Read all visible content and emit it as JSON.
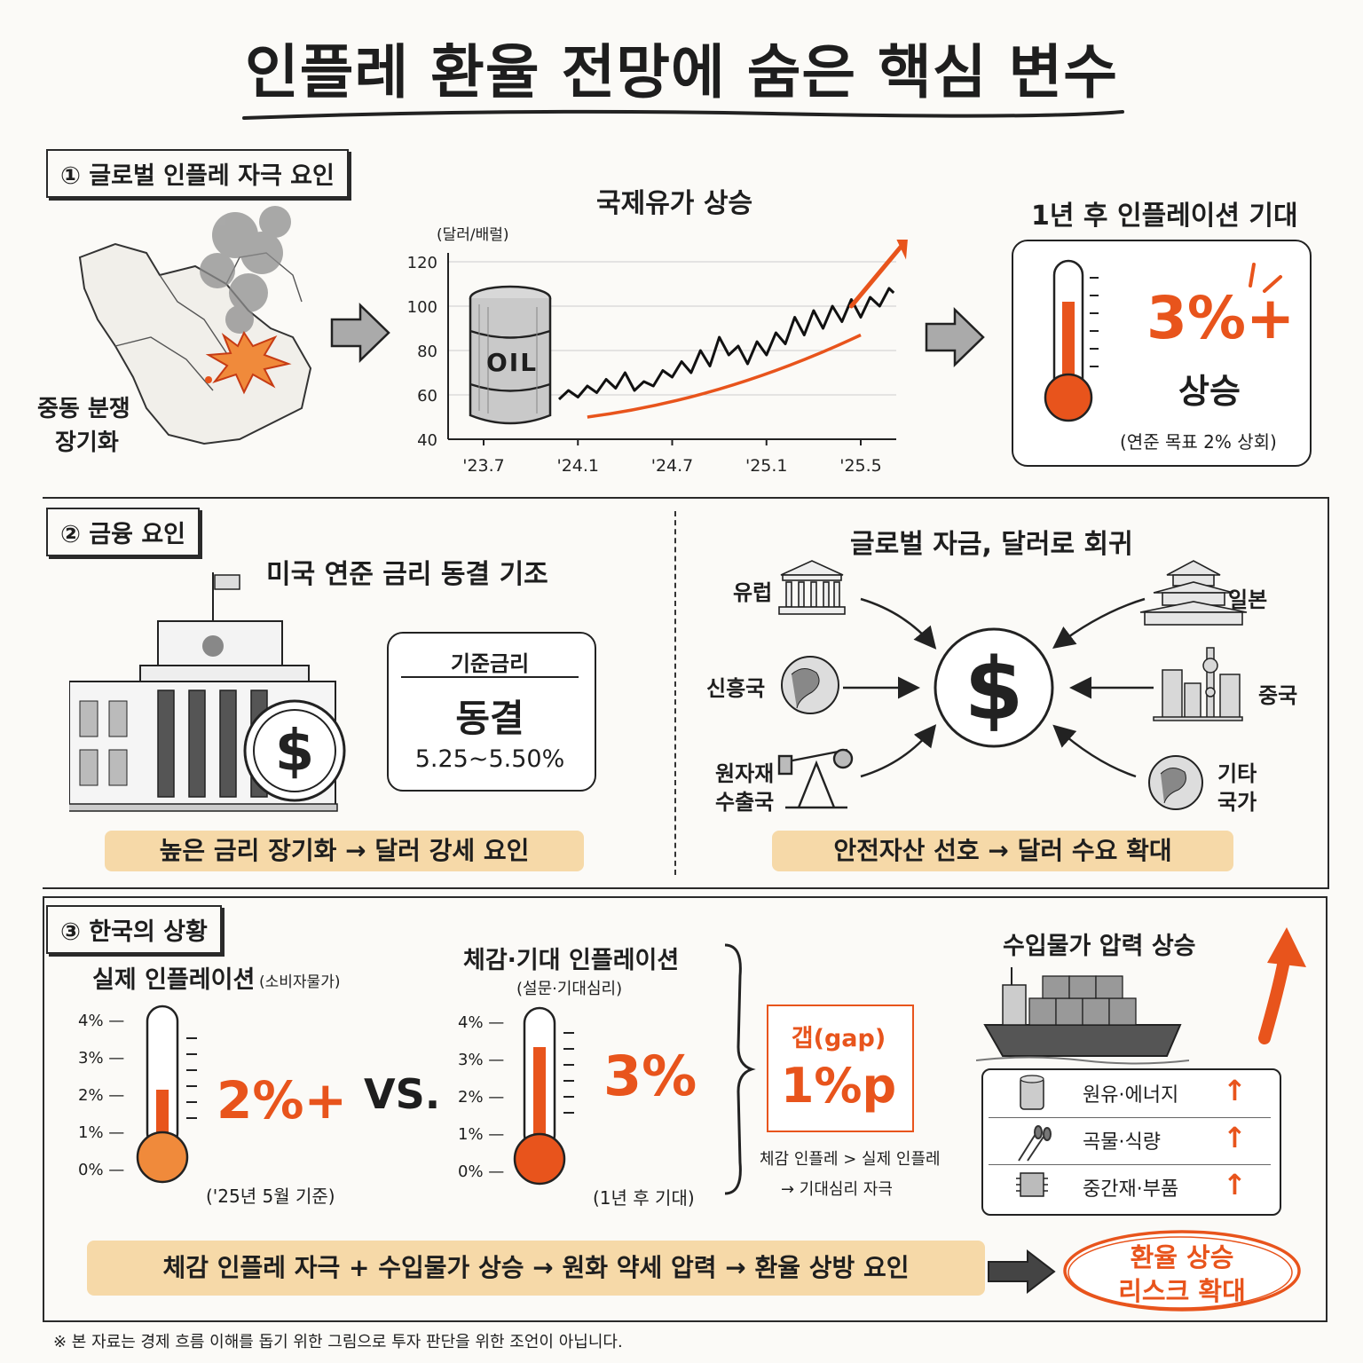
{
  "title": "인플레 환율 전망에 숨은 핵심 변수",
  "section1": {
    "tag": "① 글로벌 인플레 자극 요인",
    "conflict_label_1": "중동 분쟁",
    "conflict_label_2": "장기화",
    "oil_title": "국제유가 상승",
    "oil_unit": "(달러/배럴)",
    "barrel_label": "OIL",
    "expect_title": "1년 후 인플레이션 기대",
    "expect_value": "3%+",
    "expect_word": "상승",
    "expect_note": "(연준 목표 2% 상회)"
  },
  "section2": {
    "tag": "② 금융 요인",
    "fed_title": "미국 연준 금리 동결 기조",
    "rate_header": "기준금리",
    "rate_status": "동결",
    "rate_range": "5.25~5.50%",
    "left_summary": "높은 금리 장기화  →  달러 강세 요인",
    "flow_title": "글로벌 자금, 달러로 회귀",
    "sources": {
      "europe": "유럽",
      "emerging": "신흥국",
      "commodity_1": "원자재",
      "commodity_2": "수출국",
      "japan": "일본",
      "china": "중국",
      "other_1": "기타",
      "other_2": "국가"
    },
    "right_summary": "안전자산 선호  →  달러 수요 확대"
  },
  "section3": {
    "tag": "③ 한국의 상황",
    "actual_title": "실제 인플레이션",
    "actual_sub": "(소비자물가)",
    "actual_value": "2%+",
    "actual_note": "('25년 5월 기준)",
    "vs": "VS.",
    "felt_title": "체감·기대 인플레이션",
    "felt_sub": "(설문·기대심리)",
    "felt_value": "3%",
    "felt_note": "(1년 후 기대)",
    "gap_label": "갭(gap)",
    "gap_value": "1%p",
    "gap_note_1": "체감 인플레 > 실제 인플레",
    "gap_note_2": "→ 기대심리 자극",
    "import_title": "수입물가 압력 상승",
    "import_items": [
      {
        "name": "원유·에너지",
        "arrow": "↑"
      },
      {
        "name": "곡물·식량",
        "arrow": "↑"
      },
      {
        "name": "중간재·부품",
        "arrow": "↑"
      }
    ],
    "thermo_ticks": [
      "4%",
      "3%",
      "2%",
      "1%",
      "0%"
    ],
    "bottom_summary": "체감 인플레 자극 + 수입물가 상승 → 원화 약세 압력 → 환율 상방 요인",
    "risk_1": "환율 상승",
    "risk_2": "리스크 확대"
  },
  "disclaimer": "※ 본 자료는 경제 흐름 이해를 돕기 위한 그림으로 투자 판단을 위한 조언이 아닙니다.",
  "chart_data": {
    "type": "line",
    "title": "국제유가 상승",
    "ylabel": "(달러/배럴)",
    "xlabel": "",
    "ylim": [
      40,
      120
    ],
    "yticks": [
      40,
      60,
      80,
      100,
      120
    ],
    "xticks": [
      "'23.7",
      "'24.1",
      "'24.7",
      "'25.1",
      "'25.5"
    ],
    "series": [
      {
        "x_index": [
          0.8,
          0.9,
          1.0,
          1.1,
          1.2,
          1.3,
          1.4,
          1.5,
          1.6,
          1.7,
          1.8,
          1.9,
          2.0,
          2.1,
          2.2,
          2.3,
          2.4,
          2.5,
          2.6,
          2.7,
          2.8,
          2.9,
          3.0,
          3.1,
          3.2,
          3.3,
          3.4,
          3.5,
          3.6,
          3.7,
          3.8,
          3.9,
          4.0,
          4.1,
          4.2,
          4.3,
          4.35
        ],
        "values": [
          58,
          62,
          59,
          64,
          61,
          67,
          63,
          70,
          62,
          66,
          64,
          71,
          68,
          75,
          70,
          80,
          73,
          86,
          78,
          82,
          74,
          84,
          78,
          88,
          83,
          95,
          87,
          98,
          90,
          100,
          93,
          103,
          95,
          104,
          100,
          108,
          106
        ]
      }
    ],
    "trend": [
      [
        1.1,
        50
      ],
      [
        4.0,
        87
      ]
    ]
  },
  "colors": {
    "accent": "#e8541c",
    "stripe": "#f6d9a8",
    "ink": "#1e1e1e"
  }
}
